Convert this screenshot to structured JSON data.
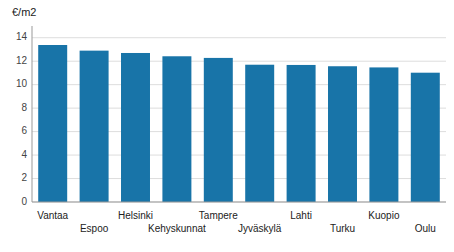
{
  "chart_data": {
    "type": "bar",
    "ylabel": "€/m2",
    "categories": [
      "Vantaa",
      "Espoo",
      "Helsinki",
      "Kehyskunnat",
      "Tampere",
      "Jyväskylä",
      "Lahti",
      "Turku",
      "Kuopio",
      "Oulu"
    ],
    "values": [
      13.38,
      12.9,
      12.7,
      12.42,
      12.28,
      11.7,
      11.68,
      11.57,
      11.47,
      11.02
    ],
    "color": "#1874a8",
    "ylim": [
      0,
      15
    ],
    "yticks": [
      0,
      2,
      4,
      6,
      8,
      10,
      12,
      14
    ],
    "grid": true
  }
}
